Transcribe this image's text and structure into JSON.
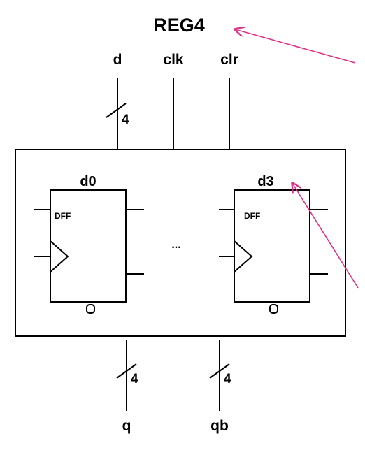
{
  "title": "REG4",
  "inputs": {
    "d": "d",
    "clk": "clk",
    "clr": "clr"
  },
  "outputs": {
    "q": "q",
    "qb": "qb"
  },
  "bus_widths": {
    "d": "4",
    "q": "4",
    "qb": "4"
  },
  "flipflops": [
    {
      "instance": "d0",
      "cell": "DFF"
    },
    {
      "instance": "d3",
      "cell": "DFF"
    }
  ],
  "ellipsis": "...",
  "colors": {
    "accent": "#e0308a",
    "line": "#000000"
  }
}
